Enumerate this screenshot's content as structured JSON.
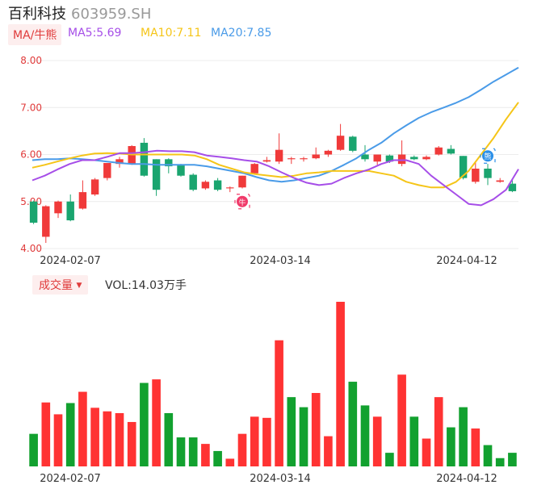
{
  "header": {
    "name": "百利科技",
    "code": "603959.SH"
  },
  "legend": {
    "ma_tag": "MA/牛熊",
    "ma5": "MA5:5.69",
    "ma10": "MA10:7.11",
    "ma20": "MA20:7.85",
    "ma5_color": "#a64ee8",
    "ma10_color": "#f5c518",
    "ma20_color": "#4a9be8"
  },
  "volume_legend": {
    "tag": "成交量",
    "arrow": "▼",
    "value": "VOL:14.03万手"
  },
  "signals": {
    "bull": "牛",
    "bear": "熊"
  },
  "colors": {
    "up": "#f03a3a",
    "down": "#1aa56f",
    "vol_up": "#ff3333",
    "vol_down": "#12a12f"
  },
  "chart_data": [
    {
      "type": "candlestick",
      "ylim": [
        4.0,
        8.0
      ],
      "yticks": [
        "8.00",
        "7.00",
        "6.00",
        "5.00",
        "4.00"
      ],
      "xticks": [
        "2024-02-07",
        "2024-03-14",
        "2024-04-12"
      ],
      "candles": [
        {
          "o": 5.0,
          "h": 5.02,
          "c": 4.55,
          "l": 4.52
        },
        {
          "o": 4.25,
          "h": 4.92,
          "c": 4.9,
          "l": 4.12
        },
        {
          "o": 4.75,
          "h": 5.02,
          "c": 5.0,
          "l": 4.65
        },
        {
          "o": 5.0,
          "h": 5.15,
          "c": 4.6,
          "l": 4.58
        },
        {
          "o": 4.85,
          "h": 5.45,
          "c": 5.2,
          "l": 4.83
        },
        {
          "o": 5.15,
          "h": 5.5,
          "c": 5.47,
          "l": 5.12
        },
        {
          "o": 5.5,
          "h": 5.8,
          "c": 5.82,
          "l": 5.45
        },
        {
          "o": 5.8,
          "h": 5.95,
          "c": 5.9,
          "l": 5.72
        },
        {
          "o": 5.8,
          "h": 6.2,
          "c": 6.18,
          "l": 5.78
        },
        {
          "o": 6.25,
          "h": 6.35,
          "c": 5.55,
          "l": 5.53
        },
        {
          "o": 5.9,
          "h": 5.9,
          "c": 5.25,
          "l": 5.12
        },
        {
          "o": 5.9,
          "h": 5.92,
          "c": 5.75,
          "l": 5.6
        },
        {
          "o": 5.78,
          "h": 5.8,
          "c": 5.55,
          "l": 5.53
        },
        {
          "o": 5.57,
          "h": 5.6,
          "c": 5.25,
          "l": 5.22
        },
        {
          "o": 5.28,
          "h": 5.45,
          "c": 5.42,
          "l": 5.25
        },
        {
          "o": 5.45,
          "h": 5.5,
          "c": 5.25,
          "l": 5.22
        },
        {
          "o": 5.28,
          "h": 5.32,
          "c": 5.3,
          "l": 5.2
        },
        {
          "o": 5.3,
          "h": 5.55,
          "c": 5.55,
          "l": 5.28
        },
        {
          "o": 5.6,
          "h": 5.82,
          "c": 5.8,
          "l": 5.58
        },
        {
          "o": 5.85,
          "h": 5.95,
          "c": 5.88,
          "l": 5.83
        },
        {
          "o": 5.85,
          "h": 6.45,
          "c": 6.1,
          "l": 5.8
        },
        {
          "o": 5.9,
          "h": 5.95,
          "c": 5.92,
          "l": 5.8
        },
        {
          "o": 5.9,
          "h": 5.95,
          "c": 5.92,
          "l": 5.85
        },
        {
          "o": 5.92,
          "h": 6.15,
          "c": 6.0,
          "l": 5.9
        },
        {
          "o": 6.0,
          "h": 6.1,
          "c": 6.08,
          "l": 5.95
        },
        {
          "o": 6.1,
          "h": 6.65,
          "c": 6.4,
          "l": 6.08
        },
        {
          "o": 6.38,
          "h": 6.4,
          "c": 6.08,
          "l": 6.05
        },
        {
          "o": 6.0,
          "h": 6.2,
          "c": 5.9,
          "l": 5.85
        },
        {
          "o": 5.85,
          "h": 6.0,
          "c": 6.0,
          "l": 5.78
        },
        {
          "o": 5.98,
          "h": 6.0,
          "c": 5.85,
          "l": 5.82
        },
        {
          "o": 5.8,
          "h": 6.3,
          "c": 6.0,
          "l": 5.75
        },
        {
          "o": 5.95,
          "h": 5.98,
          "c": 5.9,
          "l": 5.88
        },
        {
          "o": 5.9,
          "h": 5.98,
          "c": 5.95,
          "l": 5.88
        },
        {
          "o": 6.0,
          "h": 6.18,
          "c": 6.15,
          "l": 5.98
        },
        {
          "o": 6.12,
          "h": 6.2,
          "c": 6.02,
          "l": 6.0
        },
        {
          "o": 5.97,
          "h": 5.97,
          "c": 5.5,
          "l": 5.47
        },
        {
          "o": 5.42,
          "h": 5.85,
          "c": 5.7,
          "l": 5.38
        },
        {
          "o": 5.7,
          "h": 5.8,
          "c": 5.5,
          "l": 5.35
        },
        {
          "o": 5.42,
          "h": 5.5,
          "c": 5.45,
          "l": 5.4
        },
        {
          "o": 5.38,
          "h": 5.45,
          "c": 5.22,
          "l": 5.2
        }
      ],
      "ma5": [
        5.45,
        5.55,
        5.68,
        5.8,
        5.88,
        5.88,
        5.95,
        6.03,
        6.03,
        6.05,
        6.08,
        6.07,
        6.07,
        6.05,
        5.98,
        5.95,
        5.92,
        5.88,
        5.85,
        5.75,
        5.62,
        5.5,
        5.4,
        5.35,
        5.38,
        5.5,
        5.6,
        5.68,
        5.8,
        5.88,
        5.88,
        5.8,
        5.55,
        5.35,
        5.15,
        4.95,
        4.92,
        5.05,
        5.25,
        5.69
      ],
      "ma10": [
        5.72,
        5.78,
        5.85,
        5.92,
        5.98,
        6.02,
        6.03,
        6.02,
        6.0,
        6.0,
        6.0,
        6.0,
        6.0,
        5.98,
        5.9,
        5.78,
        5.7,
        5.62,
        5.58,
        5.55,
        5.52,
        5.55,
        5.6,
        5.62,
        5.65,
        5.65,
        5.65,
        5.65,
        5.6,
        5.55,
        5.42,
        5.35,
        5.3,
        5.3,
        5.42,
        5.65,
        6.0,
        6.35,
        6.75,
        7.11
      ],
      "ma20": [
        5.88,
        5.9,
        5.9,
        5.92,
        5.9,
        5.88,
        5.85,
        5.82,
        5.8,
        5.8,
        5.78,
        5.78,
        5.78,
        5.78,
        5.75,
        5.7,
        5.65,
        5.6,
        5.52,
        5.45,
        5.42,
        5.45,
        5.5,
        5.55,
        5.65,
        5.78,
        5.92,
        6.1,
        6.25,
        6.45,
        6.62,
        6.78,
        6.9,
        7.0,
        7.1,
        7.22,
        7.38,
        7.55,
        7.7,
        7.85
      ],
      "signals": [
        {
          "index": 17,
          "type": "bull",
          "price": 5.0
        },
        {
          "index": 37,
          "type": "bear",
          "price": 5.97
        }
      ]
    },
    {
      "type": "bar",
      "title": "成交量",
      "values": [
        5.5,
        10.8,
        8.8,
        10.7,
        12.6,
        9.9,
        9.3,
        9.0,
        7.5,
        14.1,
        14.7,
        9.0,
        4.9,
        4.9,
        3.8,
        2.6,
        1.3,
        5.5,
        8.4,
        8.2,
        21.3,
        11.7,
        10.0,
        12.4,
        5.1,
        27.8,
        14.3,
        10.3,
        8.4,
        2.3,
        15.5,
        8.4,
        4.7,
        11.7,
        6.6,
        10.0,
        6.4,
        3.6,
        1.4,
        2.3
      ],
      "up": [
        false,
        true,
        true,
        false,
        true,
        true,
        true,
        true,
        true,
        false,
        true,
        false,
        false,
        false,
        true,
        false,
        true,
        true,
        true,
        true,
        true,
        false,
        false,
        true,
        true,
        true,
        false,
        false,
        true,
        false,
        true,
        false,
        true,
        true,
        false,
        false,
        true,
        false,
        false,
        false
      ]
    }
  ]
}
